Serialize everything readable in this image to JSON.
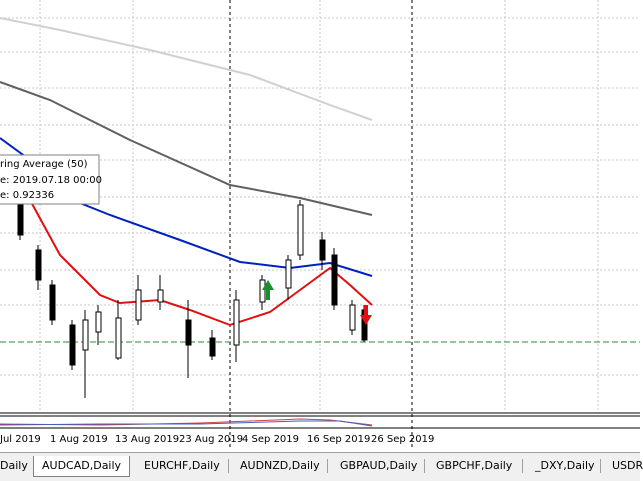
{
  "tooltip": {
    "lines": [
      "ring Average (50)",
      "e: 2019.07.18 00:00",
      "e: 0.92336"
    ]
  },
  "time_axis": {
    "labels": [
      "Jul 2019",
      "1 Aug 2019",
      "13 Aug 2019",
      "23 Aug 2019",
      "4 Sep 2019",
      "16 Sep 2019",
      "26 Sep 2019"
    ]
  },
  "tabs": {
    "items": [
      "Daily",
      "AUDCAD,Daily",
      "EURCHF,Daily",
      "AUDNZD,Daily",
      "GBPAUD,Daily",
      "GBPCHF,Daily",
      "_DXY,Daily",
      "USDR"
    ],
    "active": "AUDCAD,Daily"
  }
}
